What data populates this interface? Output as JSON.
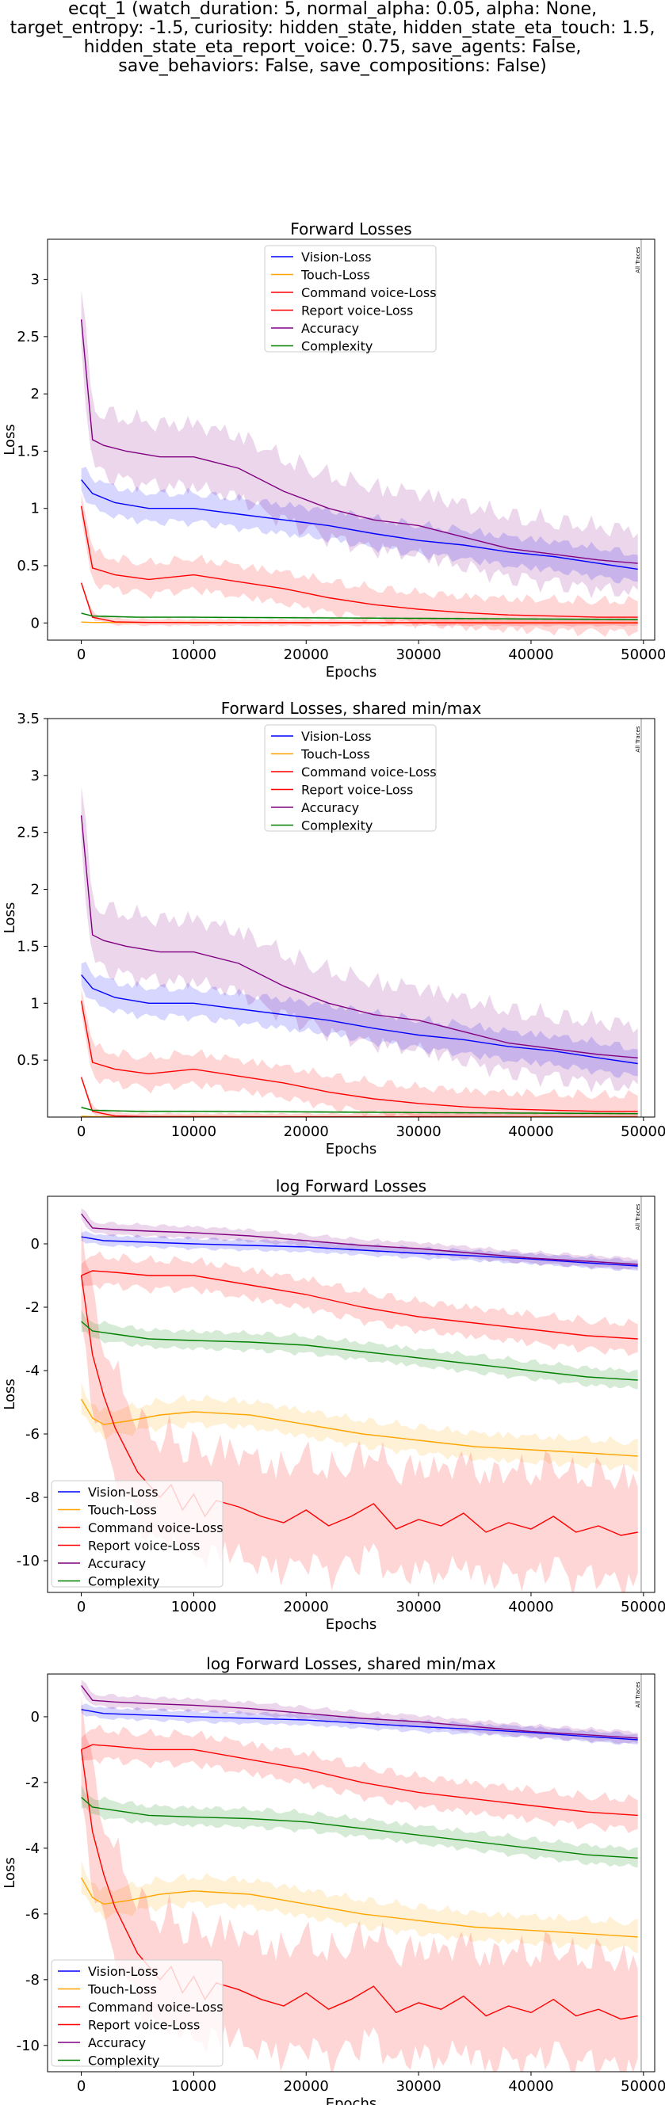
{
  "figure": {
    "suptitle_lines": [
      "ecqt_1 (watch_duration: 5, normal_alpha: 0.05, alpha: None,",
      "target_entropy: -1.5, curiosity: hidden_state, hidden_state_eta_touch: 1.5,",
      "hidden_state_eta_report_voice: 0.75, save_agents: False,",
      "save_behaviors: False, save_compositions: False)"
    ],
    "marker_label": "All Traces"
  },
  "colors": {
    "vision": "#0000ff",
    "touch": "#ffa500",
    "command": "#ff0000",
    "report": "#ff0000",
    "accuracy": "#800080",
    "complexity": "#008000"
  },
  "chart_data": [
    {
      "type": "line",
      "title": "Forward Losses",
      "xlabel": "Epochs",
      "ylabel": "Loss",
      "xlim": [
        -3000,
        51000
      ],
      "ylim": [
        -0.15,
        3.35
      ],
      "xticks": [
        0,
        10000,
        20000,
        30000,
        40000,
        50000
      ],
      "yticks": [
        0.0,
        0.5,
        1.0,
        1.5,
        2.0,
        2.5,
        3.0
      ],
      "marker_x": 49800,
      "legend": "top-center",
      "series": [
        {
          "name": "Vision-Loss",
          "color_key": "vision",
          "x": [
            0,
            1000,
            3000,
            6000,
            10000,
            14000,
            18000,
            22000,
            26000,
            30000,
            34000,
            38000,
            42000,
            46000,
            49500
          ],
          "y": [
            1.25,
            1.13,
            1.05,
            1.0,
            1.0,
            0.95,
            0.9,
            0.85,
            0.78,
            0.72,
            0.68,
            0.62,
            0.58,
            0.52,
            0.47
          ],
          "band": 0.14
        },
        {
          "name": "Touch-Loss",
          "color_key": "touch",
          "x": [
            0,
            1000,
            3000,
            10000,
            20000,
            30000,
            40000,
            49500
          ],
          "y": [
            0.008,
            0.004,
            0.004,
            0.005,
            0.003,
            0.003,
            0.002,
            0.002
          ],
          "band": 0.005
        },
        {
          "name": "Command voice-Loss",
          "color_key": "command",
          "x": [
            0,
            1000,
            3000,
            6000,
            10000,
            14000,
            18000,
            22000,
            26000,
            30000,
            34000,
            38000,
            42000,
            46000,
            49500
          ],
          "y": [
            1.02,
            0.48,
            0.42,
            0.38,
            0.42,
            0.36,
            0.3,
            0.22,
            0.16,
            0.12,
            0.09,
            0.07,
            0.06,
            0.05,
            0.05
          ],
          "band": 0.15
        },
        {
          "name": "Report voice-Loss",
          "color_key": "report",
          "x": [
            0,
            1000,
            3000,
            6000,
            10000,
            20000,
            30000,
            40000,
            49500
          ],
          "y": [
            0.35,
            0.05,
            0.01,
            0.004,
            0.003,
            0.002,
            0.002,
            0.001,
            0.001
          ],
          "band": 0.03
        },
        {
          "name": "Accuracy",
          "color_key": "accuracy",
          "x": [
            0,
            1000,
            2000,
            4000,
            7000,
            10000,
            14000,
            18000,
            22000,
            26000,
            30000,
            34000,
            38000,
            42000,
            46000,
            49500
          ],
          "y": [
            2.65,
            1.6,
            1.55,
            1.5,
            1.45,
            1.45,
            1.35,
            1.15,
            1.0,
            0.9,
            0.85,
            0.75,
            0.65,
            0.6,
            0.55,
            0.52
          ],
          "band": 0.3
        },
        {
          "name": "Complexity",
          "color_key": "complexity",
          "x": [
            0,
            1000,
            5000,
            10000,
            20000,
            30000,
            40000,
            49500
          ],
          "y": [
            0.085,
            0.06,
            0.05,
            0.05,
            0.045,
            0.04,
            0.035,
            0.03
          ],
          "band": 0.01
        }
      ]
    },
    {
      "type": "line",
      "title": "Forward Losses, shared min/max",
      "xlabel": "Epochs",
      "ylabel": "Loss",
      "xlim": [
        -3000,
        51000
      ],
      "ylim": [
        0.0,
        3.5
      ],
      "xticks": [
        0,
        10000,
        20000,
        30000,
        40000,
        50000
      ],
      "yticks": [
        0.5,
        1.0,
        1.5,
        2.0,
        2.5,
        3.0,
        3.5
      ],
      "marker_x": 49800,
      "legend": "top-center",
      "series": [
        {
          "name": "Vision-Loss",
          "color_key": "vision",
          "x": [
            0,
            1000,
            3000,
            6000,
            10000,
            14000,
            18000,
            22000,
            26000,
            30000,
            34000,
            38000,
            42000,
            46000,
            49500
          ],
          "y": [
            1.25,
            1.13,
            1.05,
            1.0,
            1.0,
            0.95,
            0.9,
            0.85,
            0.78,
            0.72,
            0.68,
            0.62,
            0.58,
            0.52,
            0.47
          ],
          "band": 0.14
        },
        {
          "name": "Touch-Loss",
          "color_key": "touch",
          "x": [
            0,
            1000,
            3000,
            10000,
            20000,
            30000,
            40000,
            49500
          ],
          "y": [
            0.008,
            0.004,
            0.004,
            0.005,
            0.003,
            0.003,
            0.002,
            0.002
          ],
          "band": 0.005
        },
        {
          "name": "Command voice-Loss",
          "color_key": "command",
          "x": [
            0,
            1000,
            3000,
            6000,
            10000,
            14000,
            18000,
            22000,
            26000,
            30000,
            34000,
            38000,
            42000,
            46000,
            49500
          ],
          "y": [
            1.02,
            0.48,
            0.42,
            0.38,
            0.42,
            0.36,
            0.3,
            0.22,
            0.16,
            0.12,
            0.09,
            0.07,
            0.06,
            0.05,
            0.05
          ],
          "band": 0.15
        },
        {
          "name": "Report voice-Loss",
          "color_key": "report",
          "x": [
            0,
            1000,
            3000,
            6000,
            10000,
            20000,
            30000,
            40000,
            49500
          ],
          "y": [
            0.35,
            0.05,
            0.01,
            0.004,
            0.003,
            0.002,
            0.002,
            0.001,
            0.001
          ],
          "band": 0.03
        },
        {
          "name": "Accuracy",
          "color_key": "accuracy",
          "x": [
            0,
            1000,
            2000,
            4000,
            7000,
            10000,
            14000,
            18000,
            22000,
            26000,
            30000,
            34000,
            38000,
            42000,
            46000,
            49500
          ],
          "y": [
            2.65,
            1.6,
            1.55,
            1.5,
            1.45,
            1.45,
            1.35,
            1.15,
            1.0,
            0.9,
            0.85,
            0.75,
            0.65,
            0.6,
            0.55,
            0.52
          ],
          "band": 0.3
        },
        {
          "name": "Complexity",
          "color_key": "complexity",
          "x": [
            0,
            1000,
            5000,
            10000,
            20000,
            30000,
            40000,
            49500
          ],
          "y": [
            0.085,
            0.06,
            0.05,
            0.05,
            0.045,
            0.04,
            0.035,
            0.03
          ],
          "band": 0.01
        }
      ]
    },
    {
      "type": "line",
      "title": "log Forward Losses",
      "xlabel": "Epochs",
      "ylabel": "Loss",
      "xlim": [
        -3000,
        51000
      ],
      "ylim": [
        -11.0,
        1.5
      ],
      "xticks": [
        0,
        10000,
        20000,
        30000,
        40000,
        50000
      ],
      "yticks": [
        -10,
        -8,
        -6,
        -4,
        -2,
        0
      ],
      "marker_x": 49800,
      "legend": "bottom-left",
      "series": [
        {
          "name": "Vision-Loss",
          "color_key": "vision",
          "x": [
            0,
            2000,
            6000,
            10000,
            15000,
            20000,
            25000,
            30000,
            35000,
            40000,
            45000,
            49500
          ],
          "y": [
            0.22,
            0.1,
            0.05,
            0.0,
            -0.05,
            -0.1,
            -0.2,
            -0.3,
            -0.38,
            -0.48,
            -0.6,
            -0.7
          ],
          "band": 0.18
        },
        {
          "name": "Touch-Loss",
          "color_key": "touch",
          "x": [
            0,
            1000,
            2000,
            4000,
            7000,
            10000,
            15000,
            20000,
            25000,
            30000,
            35000,
            40000,
            45000,
            49500
          ],
          "y": [
            -4.9,
            -5.5,
            -5.7,
            -5.6,
            -5.4,
            -5.3,
            -5.4,
            -5.7,
            -6.0,
            -6.2,
            -6.4,
            -6.5,
            -6.6,
            -6.7
          ],
          "band": 0.45
        },
        {
          "name": "Command voice-Loss",
          "color_key": "command",
          "x": [
            0,
            1000,
            3000,
            6000,
            10000,
            15000,
            20000,
            25000,
            30000,
            35000,
            40000,
            45000,
            49500
          ],
          "y": [
            -1.0,
            -0.85,
            -0.9,
            -1.0,
            -1.0,
            -1.3,
            -1.6,
            -2.0,
            -2.3,
            -2.5,
            -2.7,
            -2.9,
            -3.0
          ],
          "band": 0.5
        },
        {
          "name": "Report voice-Loss",
          "color_key": "report",
          "x": [
            0,
            1000,
            2000,
            3000,
            4000,
            5000,
            6000,
            7000,
            8000,
            9000,
            10000,
            11000,
            12000,
            14000,
            16000,
            18000,
            20000,
            22000,
            24000,
            26000,
            28000,
            30000,
            32000,
            34000,
            36000,
            38000,
            40000,
            42000,
            44000,
            46000,
            48000,
            49500
          ],
          "y": [
            -1.0,
            -3.5,
            -4.8,
            -5.8,
            -6.5,
            -7.2,
            -7.6,
            -8.0,
            -7.6,
            -8.4,
            -7.9,
            -8.6,
            -8.1,
            -8.3,
            -8.6,
            -8.8,
            -8.4,
            -8.9,
            -8.6,
            -8.2,
            -9.0,
            -8.7,
            -8.9,
            -8.5,
            -9.1,
            -8.8,
            -9.0,
            -8.6,
            -9.1,
            -8.9,
            -9.2,
            -9.1
          ],
          "band": 1.8
        },
        {
          "name": "Accuracy",
          "color_key": "accuracy",
          "x": [
            0,
            1000,
            3000,
            6000,
            10000,
            15000,
            20000,
            25000,
            30000,
            35000,
            40000,
            45000,
            49500
          ],
          "y": [
            0.95,
            0.5,
            0.45,
            0.4,
            0.35,
            0.25,
            0.1,
            -0.05,
            -0.15,
            -0.3,
            -0.45,
            -0.55,
            -0.65
          ],
          "band": 0.2
        },
        {
          "name": "Complexity",
          "color_key": "complexity",
          "x": [
            0,
            1000,
            3000,
            6000,
            10000,
            15000,
            20000,
            25000,
            30000,
            35000,
            40000,
            45000,
            49500
          ],
          "y": [
            -2.45,
            -2.75,
            -2.85,
            -3.0,
            -3.05,
            -3.1,
            -3.2,
            -3.4,
            -3.6,
            -3.8,
            -4.0,
            -4.2,
            -4.3
          ],
          "band": 0.3
        }
      ]
    },
    {
      "type": "line",
      "title": "log Forward Losses, shared min/max",
      "xlabel": "Epochs",
      "ylabel": "Loss",
      "xlim": [
        -3000,
        51000
      ],
      "ylim": [
        -10.8,
        1.3
      ],
      "xticks": [
        0,
        10000,
        20000,
        30000,
        40000,
        50000
      ],
      "yticks": [
        -10,
        -8,
        -6,
        -4,
        -2,
        0
      ],
      "marker_x": 49800,
      "legend": "bottom-left",
      "series": [
        {
          "name": "Vision-Loss",
          "color_key": "vision",
          "x": [
            0,
            2000,
            6000,
            10000,
            15000,
            20000,
            25000,
            30000,
            35000,
            40000,
            45000,
            49500
          ],
          "y": [
            0.22,
            0.1,
            0.05,
            0.0,
            -0.05,
            -0.1,
            -0.2,
            -0.3,
            -0.38,
            -0.48,
            -0.6,
            -0.7
          ],
          "band": 0.18
        },
        {
          "name": "Touch-Loss",
          "color_key": "touch",
          "x": [
            0,
            1000,
            2000,
            4000,
            7000,
            10000,
            15000,
            20000,
            25000,
            30000,
            35000,
            40000,
            45000,
            49500
          ],
          "y": [
            -4.9,
            -5.5,
            -5.7,
            -5.6,
            -5.4,
            -5.3,
            -5.4,
            -5.7,
            -6.0,
            -6.2,
            -6.4,
            -6.5,
            -6.6,
            -6.7
          ],
          "band": 0.45
        },
        {
          "name": "Command voice-Loss",
          "color_key": "command",
          "x": [
            0,
            1000,
            3000,
            6000,
            10000,
            15000,
            20000,
            25000,
            30000,
            35000,
            40000,
            45000,
            49500
          ],
          "y": [
            -1.0,
            -0.85,
            -0.9,
            -1.0,
            -1.0,
            -1.3,
            -1.6,
            -2.0,
            -2.3,
            -2.5,
            -2.7,
            -2.9,
            -3.0
          ],
          "band": 0.5
        },
        {
          "name": "Report voice-Loss",
          "color_key": "report",
          "x": [
            0,
            1000,
            2000,
            3000,
            4000,
            5000,
            6000,
            7000,
            8000,
            9000,
            10000,
            11000,
            12000,
            14000,
            16000,
            18000,
            20000,
            22000,
            24000,
            26000,
            28000,
            30000,
            32000,
            34000,
            36000,
            38000,
            40000,
            42000,
            44000,
            46000,
            48000,
            49500
          ],
          "y": [
            -1.0,
            -3.5,
            -4.8,
            -5.8,
            -6.5,
            -7.2,
            -7.6,
            -8.0,
            -7.6,
            -8.4,
            -7.9,
            -8.6,
            -8.1,
            -8.3,
            -8.6,
            -8.8,
            -8.4,
            -8.9,
            -8.6,
            -8.2,
            -9.0,
            -8.7,
            -8.9,
            -8.5,
            -9.1,
            -8.8,
            -9.0,
            -8.6,
            -9.1,
            -8.9,
            -9.2,
            -9.1
          ],
          "band": 1.8
        },
        {
          "name": "Accuracy",
          "color_key": "accuracy",
          "x": [
            0,
            1000,
            3000,
            6000,
            10000,
            15000,
            20000,
            25000,
            30000,
            35000,
            40000,
            45000,
            49500
          ],
          "y": [
            0.95,
            0.5,
            0.45,
            0.4,
            0.35,
            0.25,
            0.1,
            -0.05,
            -0.15,
            -0.3,
            -0.45,
            -0.55,
            -0.65
          ],
          "band": 0.2
        },
        {
          "name": "Complexity",
          "color_key": "complexity",
          "x": [
            0,
            1000,
            3000,
            6000,
            10000,
            15000,
            20000,
            25000,
            30000,
            35000,
            40000,
            45000,
            49500
          ],
          "y": [
            -2.45,
            -2.75,
            -2.85,
            -3.0,
            -3.05,
            -3.1,
            -3.2,
            -3.4,
            -3.6,
            -3.8,
            -4.0,
            -4.2,
            -4.3
          ],
          "band": 0.3
        }
      ]
    }
  ]
}
